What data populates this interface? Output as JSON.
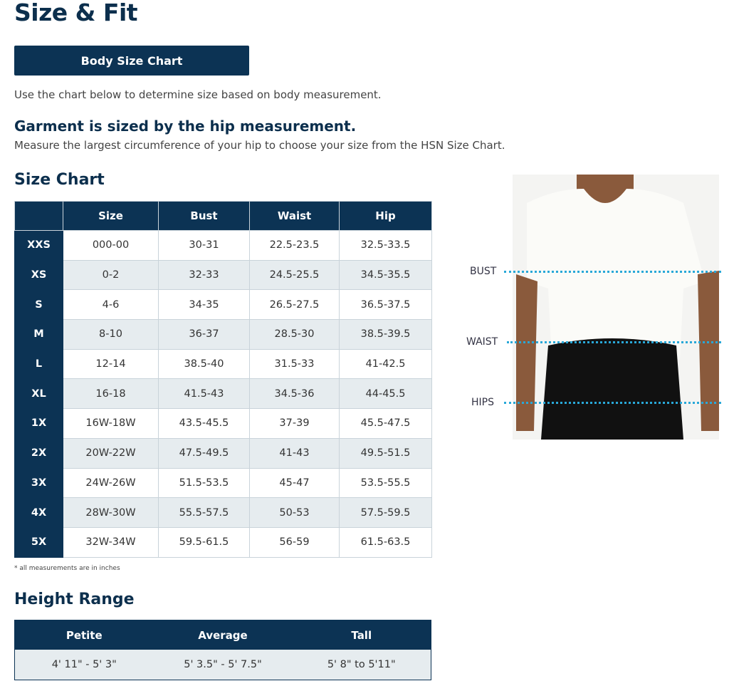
{
  "title": "Size & Fit",
  "body_size_chart_button": "Body Size Chart",
  "intro": "Use the chart below to determine size based on body measurement.",
  "garment_heading": "Garment is sized by the hip measurement.",
  "garment_text": "Measure the largest circumference of your hip to choose your size from the HSN Size Chart.",
  "size_chart": {
    "heading": "Size Chart",
    "columns": [
      "",
      "Size",
      "Bust",
      "Waist",
      "Hip"
    ],
    "rows": [
      [
        "XXS",
        "000-00",
        "30-31",
        "22.5-23.5",
        "32.5-33.5"
      ],
      [
        "XS",
        "0-2",
        "32-33",
        "24.5-25.5",
        "34.5-35.5"
      ],
      [
        "S",
        "4-6",
        "34-35",
        "26.5-27.5",
        "36.5-37.5"
      ],
      [
        "M",
        "8-10",
        "36-37",
        "28.5-30",
        "38.5-39.5"
      ],
      [
        "L",
        "12-14",
        "38.5-40",
        "31.5-33",
        "41-42.5"
      ],
      [
        "XL",
        "16-18",
        "41.5-43",
        "34.5-36",
        "44-45.5"
      ],
      [
        "1X",
        "16W-18W",
        "43.5-45.5",
        "37-39",
        "45.5-47.5"
      ],
      [
        "2X",
        "20W-22W",
        "47.5-49.5",
        "41-43",
        "49.5-51.5"
      ],
      [
        "3X",
        "24W-26W",
        "51.5-53.5",
        "45-47",
        "53.5-55.5"
      ],
      [
        "4X",
        "28W-30W",
        "55.5-57.5",
        "50-53",
        "57.5-59.5"
      ],
      [
        "5X",
        "32W-34W",
        "59.5-61.5",
        "56-59",
        "61.5-63.5"
      ]
    ],
    "note": "* all measurements are in inches"
  },
  "height_range": {
    "heading": "Height Range",
    "columns": [
      "Petite",
      "Average",
      "Tall"
    ],
    "values": [
      "4' 11\" - 5' 3\"",
      "5' 3.5\" - 5' 7.5\"",
      "5' 8\" to 5'11\""
    ]
  },
  "figure": {
    "labels": {
      "bust": "BUST",
      "waist": "WAIST",
      "hips": "HIPS"
    },
    "line_color": "#29a8d8"
  },
  "colors": {
    "navy": "#0c3354",
    "row_alt": "#e6ecef"
  }
}
